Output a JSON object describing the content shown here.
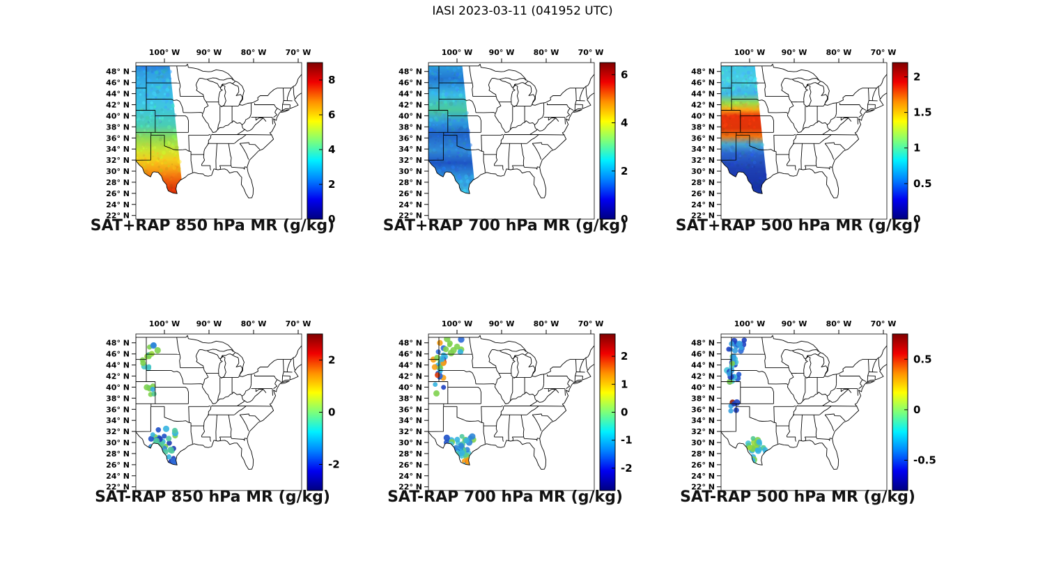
{
  "figure": {
    "title": "IASI 2023-03-11 (041952 UTC)",
    "background_color": "#ffffff",
    "colormap": "jet"
  },
  "axes": {
    "lon_ticks": [
      {
        "value": -100,
        "label": "100° W"
      },
      {
        "value": -90,
        "label": "90° W"
      },
      {
        "value": -80,
        "label": "80° W"
      },
      {
        "value": -70,
        "label": "70° W"
      }
    ],
    "lat_ticks": [
      {
        "value": 48,
        "label": "48° N"
      },
      {
        "value": 46,
        "label": "46° N"
      },
      {
        "value": 44,
        "label": "44° N"
      },
      {
        "value": 42,
        "label": "42° N"
      },
      {
        "value": 40,
        "label": "40° N"
      },
      {
        "value": 38,
        "label": "38° N"
      },
      {
        "value": 36,
        "label": "36° N"
      },
      {
        "value": 34,
        "label": "34° N"
      },
      {
        "value": 32,
        "label": "32° N"
      },
      {
        "value": 30,
        "label": "30° N"
      },
      {
        "value": 28,
        "label": "28° N"
      },
      {
        "value": 26,
        "label": "26° N"
      },
      {
        "value": 24,
        "label": "24° N"
      },
      {
        "value": 22,
        "label": "22° N"
      }
    ]
  },
  "panels": [
    {
      "id": "sat-plus-rap-850",
      "title": "SAT+RAP 850 hPa MR (g/kg)",
      "type": "swath",
      "colorbar": {
        "min": 0,
        "max": 9,
        "ticks": [
          {
            "value": 0,
            "label": "0"
          },
          {
            "value": 2,
            "label": "2"
          },
          {
            "value": 4,
            "label": "4"
          },
          {
            "value": 6,
            "label": "6"
          },
          {
            "value": 8,
            "label": "8"
          }
        ]
      },
      "visual": {
        "swath": [
          [
            -106.5,
            49.7
          ],
          [
            -98.9,
            49.7
          ],
          [
            -95.2,
            21.3
          ],
          [
            -106.5,
            21.3
          ]
        ],
        "speckle_n": 380,
        "gradient": [
          [
            0,
            "#2a6fd6"
          ],
          [
            0.06,
            "#2f9fe0"
          ],
          [
            0.16,
            "#38b6e8"
          ],
          [
            0.28,
            "#3fc6e0"
          ],
          [
            0.4,
            "#49cdb4"
          ],
          [
            0.48,
            "#8cd957"
          ],
          [
            0.56,
            "#cbe431"
          ],
          [
            0.62,
            "#f2cf1d"
          ],
          [
            0.68,
            "#f7a214"
          ],
          [
            0.74,
            "#f0690d"
          ],
          [
            0.8,
            "#e03a08"
          ],
          [
            0.87,
            "#cf2a05"
          ],
          [
            0.93,
            "#e05a10"
          ],
          [
            1,
            "#f08c20"
          ]
        ]
      }
    },
    {
      "id": "sat-plus-rap-700",
      "title": "SAT+RAP 700 hPa MR (g/kg)",
      "type": "swath",
      "colorbar": {
        "min": 0,
        "max": 6.5,
        "ticks": [
          {
            "value": 0,
            "label": "0"
          },
          {
            "value": 2,
            "label": "2"
          },
          {
            "value": 4,
            "label": "4"
          },
          {
            "value": 6,
            "label": "6"
          }
        ]
      },
      "visual": {
        "swath": [
          [
            -106.5,
            49.7
          ],
          [
            -98.9,
            49.7
          ],
          [
            -95.2,
            21.3
          ],
          [
            -106.5,
            21.3
          ]
        ],
        "speckle_n": 380,
        "gradient": [
          [
            0,
            "#2fa8e0"
          ],
          [
            0.1,
            "#2277d2"
          ],
          [
            0.2,
            "#39b7e6"
          ],
          [
            0.3,
            "#49c9a0"
          ],
          [
            0.38,
            "#2f9ade"
          ],
          [
            0.46,
            "#2063c8"
          ],
          [
            0.56,
            "#2f8ad8"
          ],
          [
            0.64,
            "#1e56c4"
          ],
          [
            0.74,
            "#2f9ade"
          ],
          [
            0.85,
            "#3fc0e6"
          ],
          [
            1,
            "#35aade"
          ]
        ]
      }
    },
    {
      "id": "sat-plus-rap-500",
      "title": "SAT+RAP 500 hPa MR (g/kg)",
      "type": "swath",
      "colorbar": {
        "min": 0,
        "max": 2.2,
        "ticks": [
          {
            "value": 0,
            "label": "0"
          },
          {
            "value": 0.5,
            "label": "0.5"
          },
          {
            "value": 1,
            "label": "1"
          },
          {
            "value": 1.5,
            "label": "1.5"
          },
          {
            "value": 2,
            "label": "2"
          }
        ]
      },
      "visual": {
        "swath": [
          [
            -106.5,
            49.7
          ],
          [
            -98.9,
            49.7
          ],
          [
            -95.2,
            21.3
          ],
          [
            -106.5,
            21.3
          ]
        ],
        "speckle_n": 380,
        "gradient": [
          [
            0,
            "#3fc4e8"
          ],
          [
            0.12,
            "#49cde0"
          ],
          [
            0.2,
            "#3fb7e6"
          ],
          [
            0.26,
            "#9cdc46"
          ],
          [
            0.3,
            "#f7a818"
          ],
          [
            0.34,
            "#e8320a"
          ],
          [
            0.42,
            "#e03508"
          ],
          [
            0.47,
            "#f0740f"
          ],
          [
            0.52,
            "#49a8d0"
          ],
          [
            0.58,
            "#2a64cc"
          ],
          [
            0.68,
            "#1e40b4"
          ],
          [
            0.8,
            "#1632a4"
          ],
          [
            0.92,
            "#1e46b8"
          ],
          [
            1,
            "#2a5ac8"
          ]
        ]
      }
    },
    {
      "id": "sat-minus-rap-850",
      "title": "SAT-RAP 850 hPa MR (g/kg)",
      "type": "scatter",
      "colorbar": {
        "min": -3,
        "max": 3,
        "ticks": [
          {
            "value": -2,
            "label": "-2"
          },
          {
            "value": 0,
            "label": "0"
          },
          {
            "value": 2,
            "label": "2"
          }
        ]
      },
      "visual": {
        "clusters": [
          {
            "lon": -102.8,
            "lat": 46.8,
            "dlon": 1.6,
            "dlat": 1.2,
            "n": 9,
            "colors": [
              "#7ed24e",
              "#4fc98f",
              "#45c4c4",
              "#9ad83c",
              "#2e86d8"
            ]
          },
          {
            "lon": -104.5,
            "lat": 44.5,
            "dlon": 0.8,
            "dlat": 1.0,
            "n": 5,
            "colors": [
              "#7ed24e",
              "#45c4c4"
            ]
          },
          {
            "lon": -102.9,
            "lat": 39.3,
            "dlon": 1.0,
            "dlat": 1.3,
            "n": 7,
            "colors": [
              "#7ed24e",
              "#4fc98f",
              "#35a8e0"
            ]
          },
          {
            "lon": -100.6,
            "lat": 29.8,
            "dlon": 2.2,
            "dlat": 2.0,
            "n": 42,
            "colors": [
              "#2e86d8",
              "#1e50c8",
              "#35b4e0",
              "#4fc9a0",
              "#7ed24e",
              "#1e3cb4",
              "#35b4e0",
              "#4fc9a0"
            ]
          },
          {
            "lon": -97.8,
            "lat": 26.8,
            "dlon": 1.0,
            "dlat": 0.8,
            "n": 8,
            "colors": [
              "#1e3cb4",
              "#2e6ad8",
              "#35b4e0"
            ]
          }
        ]
      }
    },
    {
      "id": "sat-minus-rap-700",
      "title": "SAT-RAP 700 hPa MR (g/kg)",
      "type": "scatter",
      "colorbar": {
        "min": -2.8,
        "max": 2.8,
        "ticks": [
          {
            "value": -2,
            "label": "-2"
          },
          {
            "value": -1,
            "label": "-1"
          },
          {
            "value": 0,
            "label": "0"
          },
          {
            "value": 1,
            "label": "1"
          },
          {
            "value": 2,
            "label": "2"
          }
        ]
      },
      "visual": {
        "clusters": [
          {
            "lon": -103.9,
            "lat": 43.5,
            "dlon": 1.0,
            "dlat": 3.6,
            "n": 26,
            "colors": [
              "#e8420a",
              "#f7a014",
              "#7ed24e",
              "#35b4e0",
              "#2e6ad8",
              "#1e40c0",
              "#4fc9a0"
            ]
          },
          {
            "lon": -101.3,
            "lat": 47.2,
            "dlon": 1.8,
            "dlat": 1.2,
            "n": 11,
            "colors": [
              "#1e40c0",
              "#2e6ad8",
              "#7ed24e",
              "#35b4e0"
            ]
          },
          {
            "lon": -99.8,
            "lat": 28.8,
            "dlon": 2.3,
            "dlat": 1.8,
            "n": 40,
            "colors": [
              "#35b4e0",
              "#4fc9a0",
              "#7ed24e",
              "#2e86d8",
              "#1e50c8",
              "#49c4d8"
            ]
          },
          {
            "lon": -97.3,
            "lat": 26.5,
            "dlon": 0.8,
            "dlat": 0.6,
            "n": 6,
            "colors": [
              "#e8420a",
              "#f7a014",
              "#35b4e0"
            ]
          }
        ]
      }
    },
    {
      "id": "sat-minus-rap-500",
      "title": "SAT-RAP 500 hPa MR (g/kg)",
      "type": "scatter",
      "colorbar": {
        "min": -0.8,
        "max": 0.75,
        "ticks": [
          {
            "value": -0.5,
            "label": "-0.5"
          },
          {
            "value": 0,
            "label": "0"
          },
          {
            "value": 0.5,
            "label": "0.5"
          }
        ]
      },
      "visual": {
        "clusters": [
          {
            "lon": -103.9,
            "lat": 43.0,
            "dlon": 1.0,
            "dlat": 3.2,
            "n": 30,
            "colors": [
              "#1e40c0",
              "#2058d0",
              "#35a0e0",
              "#49c4d8",
              "#7ed24e"
            ]
          },
          {
            "lon": -102.2,
            "lat": 47.3,
            "dlon": 1.8,
            "dlat": 1.1,
            "n": 12,
            "colors": [
              "#1e40c0",
              "#2e6ad8",
              "#35a0e0"
            ]
          },
          {
            "lon": -103.5,
            "lat": 36.5,
            "dlon": 0.8,
            "dlat": 1.0,
            "n": 6,
            "colors": [
              "#8c1e0a",
              "#1e40c0",
              "#35a0e0"
            ]
          },
          {
            "lon": -99.3,
            "lat": 28.6,
            "dlon": 2.2,
            "dlat": 1.7,
            "n": 36,
            "colors": [
              "#7ed24e",
              "#9ad83c",
              "#4fc98f",
              "#49c4d8",
              "#35b4e0"
            ]
          }
        ]
      }
    }
  ],
  "chart_data": [
    {
      "panel": 1,
      "type": "heatmap",
      "title": "SAT+RAP 850 hPa MR (g/kg)",
      "variable": "850 hPa water vapor mixing ratio (satellite + RAP)",
      "units": "g/kg",
      "colormap": "jet",
      "colorbar_range": [
        0,
        9
      ],
      "colorbar_ticks": [
        0,
        2,
        4,
        6,
        8
      ],
      "lon_ticks_deg_w": [
        100,
        90,
        80,
        70
      ],
      "lat_ticks_deg_n": [
        48,
        46,
        44,
        42,
        40,
        38,
        36,
        34,
        32,
        30,
        28,
        26,
        24,
        22
      ],
      "swath": "IASI overpass covering roughly 106W-96W from 22N to 49N",
      "pattern": "1-3 g/kg north of 38N, 3-5 g/kg between 34N and 38N, rising to 6-9 g/kg over southern Texas near the Gulf"
    },
    {
      "panel": 2,
      "type": "heatmap",
      "title": "SAT+RAP 700 hPa MR (g/kg)",
      "variable": "700 hPa water vapor mixing ratio (satellite + RAP)",
      "units": "g/kg",
      "colormap": "jet",
      "colorbar_range": [
        0,
        6.5
      ],
      "colorbar_ticks": [
        0,
        2,
        4,
        6
      ],
      "lon_ticks_deg_w": [
        100,
        90,
        80,
        70
      ],
      "lat_ticks_deg_n": [
        48,
        46,
        44,
        42,
        40,
        38,
        36,
        34,
        32,
        30,
        28,
        26,
        24,
        22
      ],
      "swath": "IASI overpass covering roughly 106W-96W from 22N to 49N",
      "pattern": "mostly 1-3 g/kg (cyan/blue) along the swath with scattered 3-4 g/kg patches; driest air over the central and southern Plains"
    },
    {
      "panel": 3,
      "type": "heatmap",
      "title": "SAT+RAP 500 hPa MR (g/kg)",
      "variable": "500 hPa water vapor mixing ratio (satellite + RAP)",
      "units": "g/kg",
      "colormap": "jet",
      "colorbar_range": [
        0,
        2.2
      ],
      "colorbar_ticks": [
        0,
        0.5,
        1,
        1.5,
        2
      ],
      "lon_ticks_deg_w": [
        100,
        90,
        80,
        70
      ],
      "lat_ticks_deg_n": [
        48,
        46,
        44,
        42,
        40,
        38,
        36,
        34,
        32,
        30,
        28,
        26,
        24,
        22
      ],
      "swath": "IASI overpass covering roughly 106W-96W from 22N to 49N",
      "pattern": "about 1 g/kg north of 42N, moist band near 2 g/kg between 36N and 42N, very dry (<0.4 g/kg) south of 34N"
    },
    {
      "panel": 4,
      "type": "scatter",
      "title": "SAT-RAP 850 hPa MR (g/kg)",
      "variable": "850 hPa mixing ratio difference (satellite minus RAP)",
      "units": "g/kg",
      "colormap": "jet",
      "colorbar_range": [
        -3,
        3
      ],
      "colorbar_ticks": [
        -2,
        0,
        2
      ],
      "lon_ticks_deg_w": [
        100,
        90,
        80,
        70
      ],
      "lat_ticks_deg_n": [
        48,
        46,
        44,
        42,
        40,
        38,
        36,
        34,
        32,
        30,
        28,
        26,
        24,
        22
      ],
      "pattern": "differences near 0 (green/cyan) over the northern Plains; dense cluster of -1 to -3 g/kg (blue) over southern Texas"
    },
    {
      "panel": 5,
      "type": "scatter",
      "title": "SAT-RAP 700 hPa MR (g/kg)",
      "variable": "700 hPa mixing ratio difference (satellite minus RAP)",
      "units": "g/kg",
      "colormap": "jet",
      "colorbar_range": [
        -2.8,
        2.8
      ],
      "colorbar_ticks": [
        -2,
        -1,
        0,
        1,
        2
      ],
      "lon_ticks_deg_w": [
        100,
        90,
        80,
        70
      ],
      "lat_ticks_deg_n": [
        48,
        46,
        44,
        42,
        40,
        38,
        36,
        34,
        32,
        30,
        28,
        26,
        24,
        22
      ],
      "pattern": "mixed +/-2 g/kg differences along the western swath edge from 38N to 48N; -1 to +1 g/kg over south Texas"
    },
    {
      "panel": 6,
      "type": "scatter",
      "title": "SAT-RAP 500 hPa MR (g/kg)",
      "variable": "500 hPa mixing ratio difference (satellite minus RAP)",
      "units": "g/kg",
      "colormap": "jet",
      "colorbar_range": [
        -0.8,
        0.75
      ],
      "colorbar_ticks": [
        -0.5,
        0,
        0.5
      ],
      "lon_ticks_deg_w": [
        100,
        90,
        80,
        70
      ],
      "lat_ticks_deg_n": [
        48,
        46,
        44,
        42,
        40,
        38,
        36,
        34,
        32,
        30,
        28,
        26,
        24,
        22
      ],
      "pattern": "mostly -0.6 to -0.1 g/kg (blue) north of 36N near 104W; near 0 to +0.3 g/kg (green) over south Texas"
    }
  ]
}
